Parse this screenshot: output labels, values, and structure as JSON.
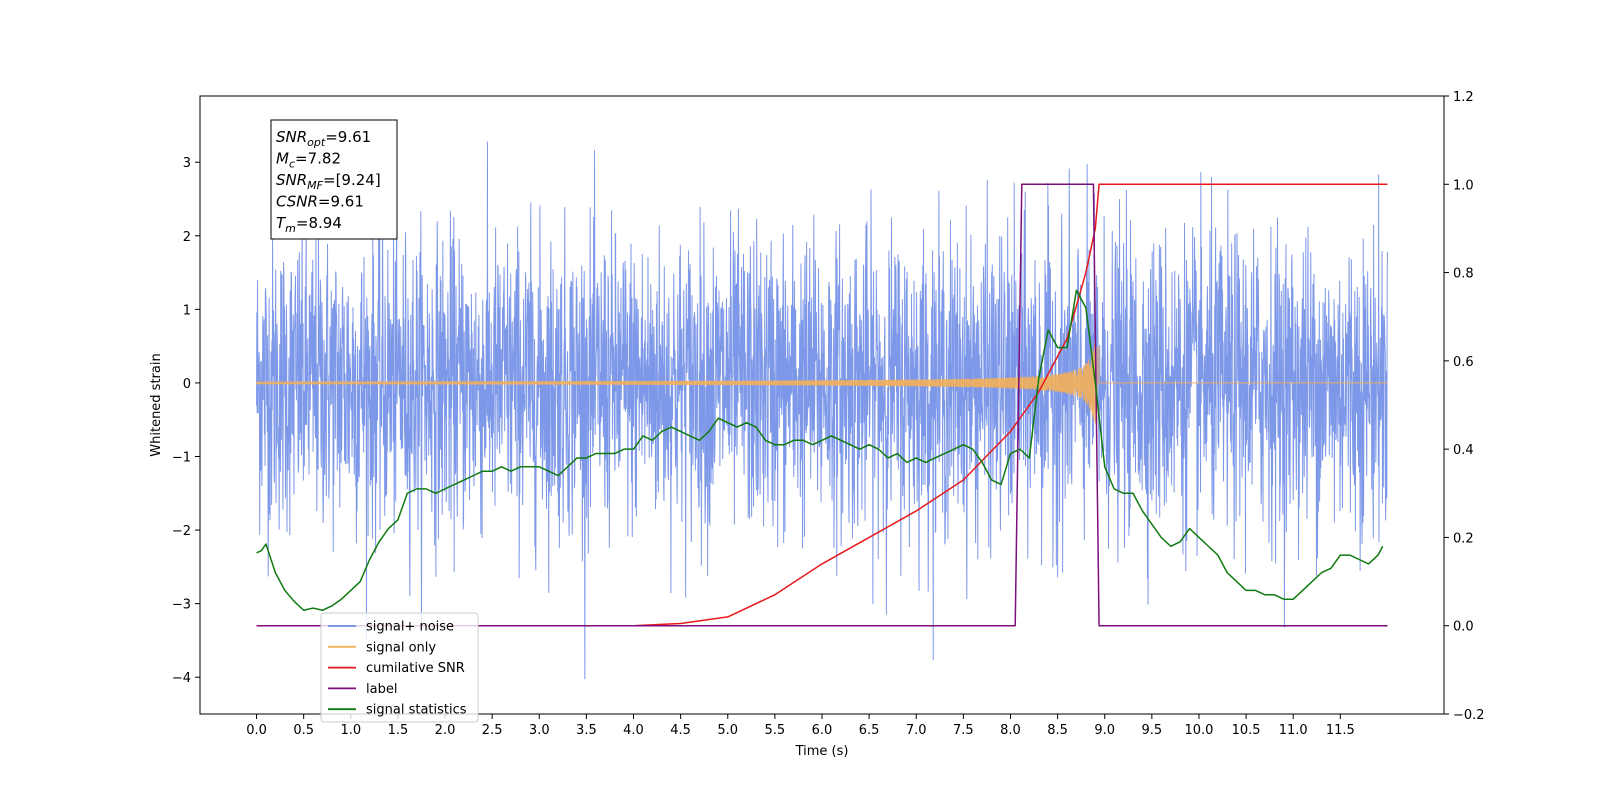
{
  "chart_data": {
    "type": "line",
    "xlabel": "Time (s)",
    "ylabel": "Whitened strain",
    "xlim": [
      -0.6,
      12.6
    ],
    "ylim": [
      -4.5,
      3.9
    ],
    "y2lim": [
      -0.2,
      1.2
    ],
    "x_ticks": [
      "0.0",
      "0.5",
      "1.0",
      "1.5",
      "2.0",
      "2.5",
      "3.0",
      "3.5",
      "4.0",
      "4.5",
      "5.0",
      "5.5",
      "6.0",
      "6.5",
      "7.0",
      "7.5",
      "8.0",
      "8.5",
      "9.0",
      "9.5",
      "10.0",
      "10.5",
      "11.0",
      "11.5"
    ],
    "y_ticks": [
      "−4",
      "−3",
      "−2",
      "−1",
      "0",
      "1",
      "2",
      "3"
    ],
    "y2_ticks": [
      "−0.2",
      "0.0",
      "0.2",
      "0.4",
      "0.6",
      "0.8",
      "1.0",
      "1.2"
    ],
    "grid": false,
    "legend_position": "lower-left",
    "annotation": {
      "lines": [
        {
          "base": "SNR",
          "sub": "opt",
          "value": "=9.61"
        },
        {
          "base": "M",
          "sub": "c",
          "value": "=7.82"
        },
        {
          "base": "SNR",
          "sub": "MF",
          "value": "=[9.24]"
        },
        {
          "base": "CSNR",
          "sub": "",
          "value": "=9.61"
        },
        {
          "base": "T",
          "sub": "m",
          "value": "=8.94"
        }
      ]
    },
    "series": [
      {
        "name": "signal+ noise",
        "color": "#6f8de6",
        "axis": "left",
        "kind": "noise",
        "x_range": [
          0,
          12
        ],
        "amplitude_sigma": 1.0
      },
      {
        "name": "signal only",
        "color": "#f4b05a",
        "axis": "left",
        "kind": "chirp",
        "x_range": [
          0,
          12
        ],
        "merger_time": 8.94,
        "peak_amplitude": 0.55
      },
      {
        "name": "cumilative SNR",
        "color": "#e8191a",
        "axis": "right",
        "x": [
          0,
          4.0,
          4.5,
          5.0,
          5.5,
          6.0,
          6.5,
          7.0,
          7.5,
          8.0,
          8.3,
          8.6,
          8.8,
          8.9,
          8.94,
          12.0
        ],
        "y": [
          0.0,
          0.0,
          0.005,
          0.02,
          0.07,
          0.14,
          0.2,
          0.26,
          0.33,
          0.44,
          0.53,
          0.65,
          0.8,
          0.9,
          1.0,
          1.0
        ]
      },
      {
        "name": "label",
        "color": "#7b0f7b",
        "axis": "right",
        "x": [
          0,
          8.05,
          8.12,
          8.88,
          8.94,
          12.0
        ],
        "y": [
          0,
          0,
          1,
          1,
          0,
          0
        ]
      },
      {
        "name": "signal statistics",
        "color": "#107a10",
        "axis": "right",
        "x": [
          0,
          0.05,
          0.1,
          0.2,
          0.3,
          0.4,
          0.5,
          0.6,
          0.7,
          0.8,
          0.9,
          1.0,
          1.1,
          1.2,
          1.3,
          1.4,
          1.5,
          1.6,
          1.7,
          1.8,
          1.9,
          2.0,
          2.1,
          2.2,
          2.3,
          2.4,
          2.5,
          2.6,
          2.7,
          2.8,
          2.9,
          3.0,
          3.1,
          3.2,
          3.3,
          3.4,
          3.5,
          3.6,
          3.7,
          3.8,
          3.9,
          4.0,
          4.1,
          4.2,
          4.3,
          4.4,
          4.5,
          4.6,
          4.7,
          4.8,
          4.9,
          5.0,
          5.1,
          5.2,
          5.3,
          5.4,
          5.5,
          5.6,
          5.7,
          5.8,
          5.9,
          6.0,
          6.1,
          6.2,
          6.3,
          6.4,
          6.5,
          6.6,
          6.7,
          6.8,
          6.9,
          7.0,
          7.1,
          7.2,
          7.3,
          7.4,
          7.5,
          7.6,
          7.7,
          7.8,
          7.9,
          8.0,
          8.1,
          8.2,
          8.3,
          8.4,
          8.5,
          8.6,
          8.7,
          8.8,
          8.9,
          9.0,
          9.1,
          9.2,
          9.3,
          9.4,
          9.5,
          9.6,
          9.7,
          9.8,
          9.9,
          10.0,
          10.1,
          10.2,
          10.3,
          10.4,
          10.5,
          10.6,
          10.7,
          10.8,
          10.9,
          11.0,
          11.1,
          11.2,
          11.3,
          11.4,
          11.5,
          11.6,
          11.7,
          11.8,
          11.9,
          11.95
        ],
        "y": [
          0.165,
          0.17,
          0.185,
          0.12,
          0.08,
          0.055,
          0.035,
          0.04,
          0.035,
          0.045,
          0.06,
          0.08,
          0.1,
          0.15,
          0.19,
          0.22,
          0.24,
          0.3,
          0.31,
          0.31,
          0.3,
          0.31,
          0.32,
          0.33,
          0.34,
          0.35,
          0.35,
          0.36,
          0.35,
          0.36,
          0.36,
          0.36,
          0.35,
          0.34,
          0.36,
          0.38,
          0.38,
          0.39,
          0.39,
          0.39,
          0.4,
          0.4,
          0.43,
          0.42,
          0.44,
          0.45,
          0.44,
          0.43,
          0.42,
          0.44,
          0.47,
          0.46,
          0.45,
          0.46,
          0.45,
          0.42,
          0.41,
          0.41,
          0.42,
          0.42,
          0.41,
          0.42,
          0.43,
          0.42,
          0.41,
          0.4,
          0.41,
          0.4,
          0.38,
          0.39,
          0.37,
          0.38,
          0.37,
          0.38,
          0.39,
          0.4,
          0.41,
          0.4,
          0.37,
          0.33,
          0.32,
          0.39,
          0.4,
          0.38,
          0.56,
          0.67,
          0.63,
          0.63,
          0.76,
          0.72,
          0.55,
          0.36,
          0.31,
          0.3,
          0.3,
          0.26,
          0.23,
          0.2,
          0.18,
          0.19,
          0.22,
          0.2,
          0.18,
          0.16,
          0.12,
          0.1,
          0.08,
          0.08,
          0.07,
          0.07,
          0.06,
          0.06,
          0.08,
          0.1,
          0.12,
          0.13,
          0.16,
          0.16,
          0.15,
          0.14,
          0.16,
          0.18
        ]
      }
    ],
    "legend": [
      {
        "label": "signal+ noise",
        "color": "#6f8de6"
      },
      {
        "label": "signal only",
        "color": "#f4b05a"
      },
      {
        "label": "cumilative SNR",
        "color": "#e8191a"
      },
      {
        "label": "label",
        "color": "#7b0f7b"
      },
      {
        "label": "signal statistics",
        "color": "#107a10"
      }
    ]
  }
}
